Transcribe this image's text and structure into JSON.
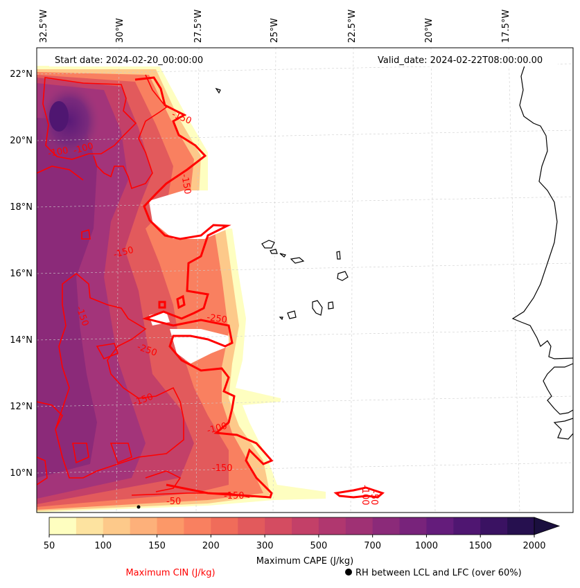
{
  "header": {
    "start_date": "Start date: 2024-02-20_00:00:00",
    "valid_date": "Valid_date: 2024-02-22T08:00:00.00"
  },
  "axes": {
    "lon_labels": [
      "32.5°W",
      "30°W",
      "27.5°W",
      "25°W",
      "22.5°W",
      "20°W",
      "17.5°W"
    ],
    "lat_labels": [
      "22°N",
      "20°N",
      "18°N",
      "16°N",
      "14°N",
      "12°N",
      "10°N"
    ]
  },
  "contour_labels": [
    "-150",
    "-100",
    "-100",
    "-150",
    "-150",
    "-250",
    "-150",
    "-250",
    "-150",
    "-150",
    "-100",
    "-50",
    "-150",
    "-100",
    "-50"
  ],
  "colorbar": {
    "title": "Maximum CAPE (J/kg)",
    "ticks": [
      "50",
      "100",
      "150",
      "200",
      "300",
      "500",
      "700",
      "1000",
      "1500",
      "2000"
    ],
    "colors": [
      "#fefec0",
      "#fde3a0",
      "#fdc98a",
      "#fdb07a",
      "#fc9868",
      "#f98060",
      "#f06c5a",
      "#e25a5c",
      "#d44c61",
      "#c34068",
      "#b0376f",
      "#9f3174",
      "#8b2a79",
      "#78237b",
      "#641c7b",
      "#4f1671",
      "#3a1262",
      "#26104f"
    ],
    "extend_color": "#1a0f3e"
  },
  "legend": {
    "cin_label": "Maximum CIN (J/kg)",
    "rh_label": "RH between LCL and LFC (over 60%)",
    "cin_color": "#ff0000",
    "rh_marker": "filled-circle"
  }
}
